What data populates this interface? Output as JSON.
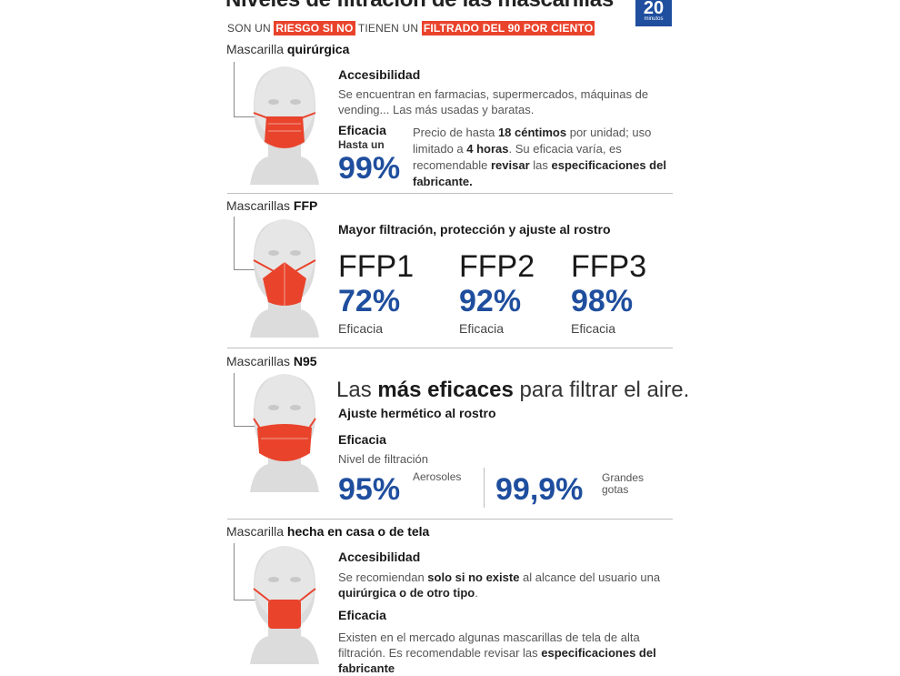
{
  "header": {
    "title": "Niveles de filtración de las mascarillas",
    "subtitle_1": "SON UN ",
    "subtitle_hl1": "RIESGO SI NO",
    "subtitle_2": " TIENEN UN ",
    "subtitle_hl2": "FILTRADO DEL 90 POR CIENTO",
    "logo_number": "20",
    "logo_text": "minutos",
    "accent_color": "#e9432c",
    "brand_color": "#1f4e9e"
  },
  "quirurgica": {
    "label_prefix": "Mascarilla ",
    "label_bold": "quirúrgica",
    "acc_title": "Accesibilidad",
    "acc_text": "Se encuentran en farmacias, supermercados, máquinas de vending... Las más usadas y baratas.",
    "ef_title": "Eficacia",
    "ef_pre": "Hasta un",
    "ef_value": "99%",
    "price_1": "Precio de hasta ",
    "price_b1": "18 céntimos",
    "price_2": " por unidad; uso limitado a ",
    "price_b2": "4 horas",
    "price_3": ". Su eficacia varía, es recomendable ",
    "price_b3": "revisar",
    "price_4": " las ",
    "price_b4": "especificaciones del fabricante."
  },
  "ffp": {
    "label_prefix": "Mascarillas ",
    "label_bold": "FFP",
    "heading": "Mayor filtración, protección y ajuste al rostro",
    "items": [
      {
        "name": "FFP1",
        "value": "72%",
        "caption": "Eficacia"
      },
      {
        "name": "FFP2",
        "value": "92%",
        "caption": "Eficacia"
      },
      {
        "name": "FFP3",
        "value": "98%",
        "caption": "Eficacia"
      }
    ]
  },
  "n95": {
    "label_prefix": "Mascarillas ",
    "label_bold": "N95",
    "tag_1": "Las ",
    "tag_b": "más eficaces",
    "tag_2": " para filtrar el aire.",
    "fit": "Ajuste hermético al rostro",
    "ef_title": "Eficacia",
    "level": "Nivel de filtración",
    "v1": "95%",
    "v1_label": "Aerosoles",
    "v2": "99,9%",
    "v2_label_1": "Grandes",
    "v2_label_2": "gotas"
  },
  "casera": {
    "label_prefix": "Mascarilla ",
    "label_bold": "hecha en casa o de tela",
    "acc_title": "Accesibilidad",
    "acc_1": "Se recomiendan ",
    "acc_b1": "solo si no existe",
    "acc_2": " al alcance del usuario una ",
    "acc_b2": "quirúrgica o de otro tipo",
    "acc_3": ".",
    "ef_title": "Eficacia",
    "ef_1": "Existen en el mercado algunas mascarillas de tela de alta filtración. Es recomendable revisar las ",
    "ef_b": "especificaciones del fabricante"
  }
}
